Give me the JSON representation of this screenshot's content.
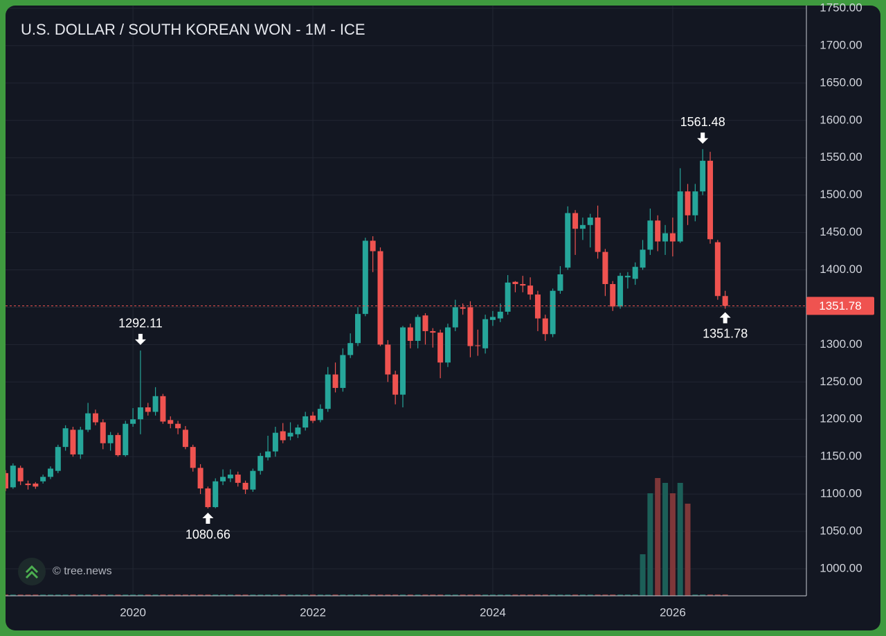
{
  "chart_data": {
    "type": "candlestick",
    "title": "U.S. DOLLAR / SOUTH KOREAN WON - 1M - ICE",
    "watermark": "© tree.news",
    "categories": [
      null,
      null,
      null,
      null,
      null,
      null,
      null,
      null,
      null,
      null,
      null,
      null,
      null,
      null,
      null,
      null,
      null,
      "2020",
      null,
      null,
      null,
      null,
      null,
      null,
      null,
      null,
      null,
      null,
      null,
      null,
      null,
      null,
      null,
      null,
      null,
      null,
      null,
      null,
      null,
      null,
      null,
      "2022",
      null,
      null,
      null,
      null,
      null,
      null,
      null,
      null,
      null,
      null,
      null,
      null,
      null,
      null,
      null,
      null,
      null,
      null,
      null,
      null,
      null,
      null,
      null,
      "2024",
      null,
      null,
      null,
      null,
      null,
      null,
      null,
      null,
      null,
      null,
      null,
      null,
      null,
      null,
      null,
      null,
      null,
      null,
      null,
      null,
      null,
      null,
      null,
      "2026",
      null,
      null,
      null,
      null,
      null,
      null,
      null
    ],
    "open": [
      1128,
      1109,
      1135,
      1114,
      1114,
      1117,
      1123,
      1131,
      1163,
      1186,
      1153,
      1186,
      1208,
      1196,
      1168,
      1179,
      1152,
      1194,
      1200,
      1216,
      1210,
      1231,
      1199,
      1194,
      1186,
      1163,
      1135,
      1107.5,
      1082.5,
      1117,
      1121,
      1126,
      1115,
      1106,
      1131,
      1149,
      1157,
      1184,
      1177,
      1180,
      1189,
      1205,
      1199,
      1214,
      1260,
      1242,
      1286,
      1302,
      1341,
      1439,
      1425,
      1300,
      1260,
      1233,
      1323,
      1305,
      1339,
      1318,
      1316,
      1276,
      1323,
      1350,
      1350,
      1299,
      1295,
      1333,
      1335,
      1344,
      1384,
      1381,
      1379,
      1367,
      1335,
      1314,
      1372,
      1403,
      1476,
      1455,
      1460,
      1470,
      1424,
      1381,
      1351,
      1390,
      1388,
      1403,
      1427,
      1466,
      1438,
      1449,
      1438,
      1505,
      1473,
      1505,
      1546,
      1437,
      1365
    ],
    "high": [
      1132,
      1141,
      1138,
      1118,
      1116,
      1126,
      1137,
      1166,
      1192,
      1190,
      1190,
      1222,
      1213,
      1200,
      1183,
      1182,
      1198,
      1215,
      1292.11,
      1222,
      1243,
      1234,
      1204,
      1198,
      1191,
      1166,
      1140,
      1110,
      1121,
      1133,
      1133,
      1130,
      1118,
      1134,
      1155,
      1178,
      1190,
      1195,
      1196,
      1193,
      1210,
      1210,
      1220,
      1270,
      1276,
      1295,
      1315,
      1350,
      1443,
      1445,
      1430,
      1306,
      1265,
      1325,
      1328,
      1340,
      1342,
      1322,
      1320,
      1328,
      1360,
      1355,
      1358,
      1320,
      1340,
      1345,
      1355,
      1393,
      1385,
      1392,
      1390,
      1372,
      1340,
      1375,
      1405,
      1485,
      1480,
      1470,
      1475,
      1486,
      1428,
      1385,
      1396,
      1397,
      1410,
      1440,
      1482,
      1473,
      1460,
      1470,
      1536,
      1515,
      1515,
      1561.48,
      1558,
      1440,
      1372
    ],
    "low": [
      1104,
      1107,
      1112,
      1106,
      1107,
      1114,
      1120,
      1128,
      1158,
      1150,
      1147,
      1183,
      1192,
      1160,
      1158,
      1150,
      1150,
      1190,
      1180,
      1205,
      1205,
      1194,
      1188,
      1180,
      1160,
      1130,
      1100,
      1080.66,
      1081,
      1112,
      1116,
      1110,
      1100,
      1103,
      1126,
      1145,
      1150,
      1168,
      1172,
      1175,
      1185,
      1195,
      1196,
      1210,
      1236,
      1237,
      1282,
      1298,
      1338,
      1397,
      1298,
      1250,
      1220,
      1216,
      1295,
      1295,
      1300,
      1296,
      1255,
      1270,
      1318,
      1340,
      1283,
      1285,
      1288,
      1325,
      1330,
      1340,
      1370,
      1370,
      1360,
      1318,
      1305,
      1310,
      1368,
      1400,
      1420,
      1440,
      1430,
      1415,
      1365,
      1345,
      1348,
      1375,
      1380,
      1400,
      1420,
      1425,
      1420,
      1418,
      1436,
      1460,
      1465,
      1500,
      1435,
      1360,
      1348
    ],
    "close": [
      1107.5,
      1138,
      1117,
      1112,
      1110,
      1123,
      1134,
      1163,
      1188,
      1153,
      1186,
      1208,
      1196,
      1168,
      1179,
      1152,
      1194,
      1200,
      1216,
      1210,
      1231,
      1197,
      1194,
      1188,
      1163,
      1135,
      1107.5,
      1082.5,
      1117,
      1123,
      1126,
      1115,
      1106,
      1131,
      1151,
      1157,
      1182,
      1172,
      1182,
      1189,
      1204,
      1198,
      1214,
      1260,
      1242,
      1286,
      1302,
      1341,
      1439,
      1425,
      1300,
      1260,
      1233,
      1323,
      1305,
      1337,
      1318,
      1316,
      1276,
      1323,
      1350,
      1348,
      1298,
      1298,
      1334,
      1337,
      1344,
      1383,
      1381,
      1379,
      1367,
      1335,
      1314,
      1372,
      1394,
      1476,
      1455,
      1460,
      1470,
      1424,
      1381,
      1351,
      1392,
      1392,
      1404,
      1427,
      1466,
      1438,
      1449,
      1438,
      1505,
      1473,
      1505,
      1546,
      1441,
      1365,
      1351.78
    ],
    "volume": [
      2,
      2,
      2,
      2,
      2,
      2,
      2,
      2,
      2,
      2,
      2,
      2,
      2,
      2,
      2,
      2,
      2,
      2,
      2,
      2,
      2,
      2,
      2,
      2,
      2,
      2,
      2,
      2,
      2,
      2,
      2,
      2,
      2,
      2,
      2,
      2,
      2,
      2,
      2,
      2,
      2,
      2,
      2,
      2,
      2,
      2,
      2,
      2,
      2,
      2,
      2,
      2,
      2,
      2,
      2,
      2,
      2,
      2,
      2,
      2,
      2,
      2,
      2,
      2,
      2,
      2,
      2,
      2,
      2,
      2,
      2,
      2,
      2,
      2,
      2,
      2,
      2,
      2,
      2,
      2,
      2,
      2,
      2,
      2,
      2,
      60,
      148,
      170,
      163,
      148,
      163,
      133,
      2,
      2,
      2,
      2,
      2
    ],
    "high_labels": [
      null,
      null,
      null,
      null,
      null,
      null,
      null,
      null,
      null,
      null,
      null,
      null,
      null,
      null,
      null,
      null,
      null,
      null,
      "1292.11",
      null,
      null,
      null,
      null,
      null,
      null,
      null,
      null,
      null,
      null,
      null,
      null,
      null,
      null,
      null,
      null,
      null,
      null,
      null,
      null,
      null,
      null,
      null,
      null,
      null,
      null,
      null,
      null,
      null,
      null,
      null,
      null,
      null,
      null,
      null,
      null,
      null,
      null,
      null,
      null,
      null,
      null,
      null,
      null,
      null,
      null,
      null,
      null,
      null,
      null,
      null,
      null,
      null,
      null,
      null,
      null,
      null,
      null,
      null,
      null,
      null,
      null,
      null,
      null,
      null,
      null,
      null,
      null,
      null,
      null,
      null,
      null,
      null,
      null,
      "1561.48",
      null,
      null,
      null
    ],
    "low_labels": [
      null,
      null,
      null,
      null,
      null,
      null,
      null,
      null,
      null,
      null,
      null,
      null,
      null,
      null,
      null,
      null,
      null,
      null,
      null,
      null,
      null,
      null,
      null,
      null,
      null,
      null,
      null,
      "1080.66",
      null,
      null,
      null,
      null,
      null,
      null,
      null,
      null,
      null,
      null,
      null,
      null,
      null,
      null,
      null,
      null,
      null,
      null,
      null,
      null,
      null,
      null,
      null,
      null,
      null,
      null,
      null,
      null,
      null,
      null,
      null,
      null,
      null,
      null,
      null,
      null,
      null,
      null,
      null,
      null,
      null,
      null,
      null,
      null,
      null,
      null,
      null,
      null,
      null,
      null,
      null,
      null,
      null,
      null,
      null,
      null,
      null,
      null,
      null,
      null,
      null,
      null,
      null,
      null,
      null,
      null,
      null,
      null,
      null
    ],
    "close_labels": [
      null,
      null,
      null,
      null,
      null,
      null,
      null,
      null,
      null,
      null,
      null,
      null,
      null,
      null,
      null,
      null,
      null,
      null,
      null,
      null,
      null,
      null,
      null,
      null,
      null,
      null,
      null,
      null,
      null,
      null,
      null,
      null,
      null,
      null,
      null,
      null,
      null,
      null,
      null,
      null,
      null,
      null,
      null,
      null,
      null,
      null,
      null,
      null,
      null,
      null,
      null,
      null,
      null,
      null,
      null,
      null,
      null,
      null,
      null,
      null,
      null,
      null,
      null,
      null,
      null,
      null,
      null,
      null,
      null,
      null,
      null,
      null,
      null,
      null,
      null,
      null,
      null,
      null,
      null,
      null,
      null,
      null,
      null,
      null,
      null,
      null,
      null,
      null,
      null,
      null,
      null,
      null,
      null,
      null,
      null,
      null,
      "1351.78"
    ],
    "ylim": [
      963.8,
      1750
    ],
    "yticks": [
      {
        "value": 1000,
        "label": "1000.00"
      },
      {
        "value": 1050,
        "label": "1050.00"
      },
      {
        "value": 1100,
        "label": "1100.00"
      },
      {
        "value": 1150,
        "label": "1150.00"
      },
      {
        "value": 1200,
        "label": "1200.00"
      },
      {
        "value": 1250,
        "label": "1250.00"
      },
      {
        "value": 1300,
        "label": "1300.00"
      },
      {
        "value": 1350,
        "label": "1350.00"
      },
      {
        "value": 1400,
        "label": "1400.00"
      },
      {
        "value": 1450,
        "label": "1450.00"
      },
      {
        "value": 1500,
        "label": "1500.00"
      },
      {
        "value": 1550,
        "label": "1550.00"
      },
      {
        "value": 1600,
        "label": "1600.00"
      },
      {
        "value": 1650,
        "label": "1650.00"
      },
      {
        "value": 1700,
        "label": "1700.00"
      },
      {
        "value": 1750,
        "label": "1750.00"
      }
    ],
    "grid": true,
    "up_color": "#26a69a",
    "down_color": "#ef5350",
    "volume_up_color": "#1c5f58",
    "volume_down_color": "#7e3739"
  }
}
